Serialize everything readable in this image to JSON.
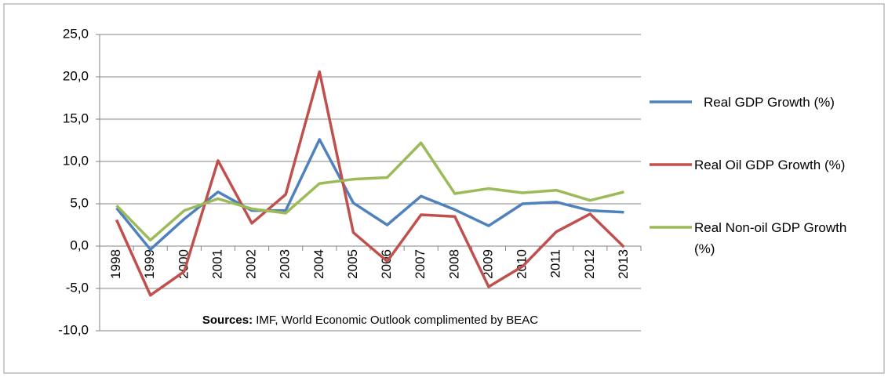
{
  "chart_data": {
    "type": "line",
    "categories": [
      "1998",
      "1999",
      "2000",
      "2001",
      "2002",
      "2003",
      "2004",
      "2005",
      "2006",
      "2007",
      "2008",
      "2009",
      "2010",
      "2011",
      "2012",
      "2013"
    ],
    "series": [
      {
        "name": "Real GDP Growth (%)",
        "color": "#4f81bd",
        "values": [
          4.5,
          -0.4,
          3.2,
          6.4,
          4.2,
          4.2,
          12.6,
          5.1,
          2.5,
          5.9,
          4.3,
          2.4,
          5.0,
          5.2,
          4.2,
          4.0
        ]
      },
      {
        "name": "Real Oil GDP Growth (%)",
        "color": "#c0504d",
        "values": [
          3.1,
          -5.8,
          -3.0,
          10.1,
          2.7,
          6.1,
          20.6,
          1.6,
          -1.8,
          3.7,
          3.5,
          -4.8,
          -2.4,
          1.7,
          3.8,
          -0.1
        ]
      },
      {
        "name": "Real Non-oil GDP Growth (%)",
        "color": "#9bbb59",
        "values": [
          4.8,
          0.7,
          4.2,
          5.6,
          4.4,
          3.9,
          7.4,
          7.9,
          8.1,
          12.2,
          6.2,
          6.8,
          6.3,
          6.6,
          5.4,
          6.4
        ]
      }
    ],
    "ylim": [
      -10,
      25
    ],
    "yticks": [
      {
        "value": -10,
        "label": "-10,0"
      },
      {
        "value": -5,
        "label": "-5,0"
      },
      {
        "value": 0,
        "label": "0,0"
      },
      {
        "value": 5,
        "label": "5,0"
      },
      {
        "value": 10,
        "label": "10,0"
      },
      {
        "value": 15,
        "label": "15,0"
      },
      {
        "value": 20,
        "label": "20,0"
      },
      {
        "value": 25,
        "label": "25,0"
      }
    ],
    "grid": true,
    "legend": "right",
    "source_label": "Sources:",
    "source": "IMF, World Economic Outlook complimented by BEAC"
  }
}
